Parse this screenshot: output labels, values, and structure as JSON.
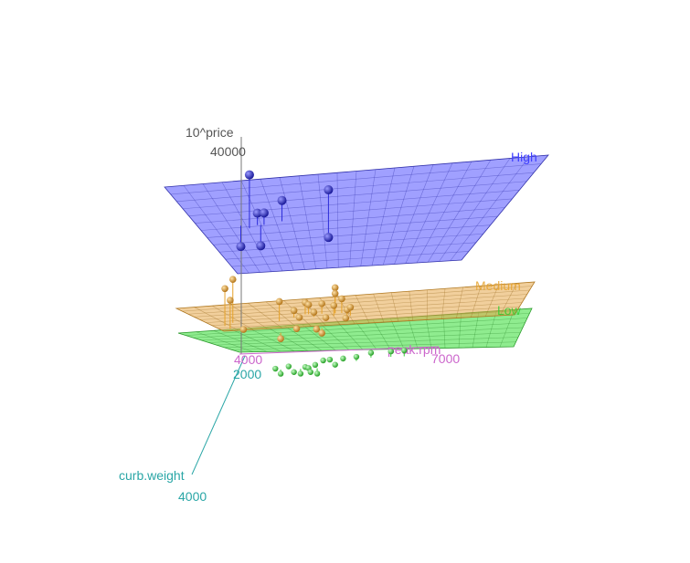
{
  "chart_data": {
    "type": "scatter",
    "dimensions": 3,
    "axes": {
      "z": {
        "label": "10^price",
        "ticks": [
          "40000"
        ],
        "color": "#555555"
      },
      "x": {
        "label": "peak.rpm",
        "ticks": [
          "4000",
          "7000"
        ],
        "color": "#cc66cc"
      },
      "y": {
        "label": "curb.weight",
        "ticks": [
          "2000",
          "4000"
        ],
        "color": "#2aa6a6"
      }
    },
    "planes": [
      {
        "name": "High",
        "color": "#4040ff"
      },
      {
        "name": "Medium",
        "color": "#e6a22a"
      },
      {
        "name": "Low",
        "color": "#33cc33"
      }
    ],
    "series": [
      {
        "name": "High",
        "color": "#2b2bd9",
        "points": [
          {
            "rpm": 4350,
            "weight": 2500,
            "price": 40000
          },
          {
            "rpm": 4450,
            "weight": 2450,
            "price": 33000
          },
          {
            "rpm": 4550,
            "weight": 2450,
            "price": 33000
          },
          {
            "rpm": 4800,
            "weight": 2400,
            "price": 34500
          },
          {
            "rpm": 5500,
            "weight": 2400,
            "price": 36000
          },
          {
            "rpm": 4200,
            "weight": 2450,
            "price": 27500
          },
          {
            "rpm": 4500,
            "weight": 2450,
            "price": 27500
          },
          {
            "rpm": 5500,
            "weight": 2400,
            "price": 28000
          }
        ]
      },
      {
        "name": "Medium",
        "color": "#e6a22a",
        "points": [
          {
            "rpm": 4100,
            "weight": 2500,
            "price": 22500
          },
          {
            "rpm": 4000,
            "weight": 2550,
            "price": 21500
          },
          {
            "rpm": 4100,
            "weight": 2600,
            "price": 20000
          },
          {
            "rpm": 4800,
            "weight": 2500,
            "price": 18500
          },
          {
            "rpm": 5600,
            "weight": 2400,
            "price": 19500
          },
          {
            "rpm": 5600,
            "weight": 2400,
            "price": 18500
          },
          {
            "rpm": 5150,
            "weight": 2400,
            "price": 17200
          },
          {
            "rpm": 5200,
            "weight": 2400,
            "price": 16800
          },
          {
            "rpm": 5400,
            "weight": 2400,
            "price": 16900
          },
          {
            "rpm": 5600,
            "weight": 2450,
            "price": 17000
          },
          {
            "rpm": 5700,
            "weight": 2400,
            "price": 17600
          },
          {
            "rpm": 5000,
            "weight": 2450,
            "price": 16400
          },
          {
            "rpm": 5300,
            "weight": 2450,
            "price": 16000
          },
          {
            "rpm": 5800,
            "weight": 2450,
            "price": 16200
          },
          {
            "rpm": 5850,
            "weight": 2450,
            "price": 16600
          },
          {
            "rpm": 5100,
            "weight": 2500,
            "price": 15700
          },
          {
            "rpm": 5500,
            "weight": 2500,
            "price": 15500
          },
          {
            "rpm": 5800,
            "weight": 2500,
            "price": 15300
          },
          {
            "rpm": 4300,
            "weight": 2600,
            "price": 15000
          },
          {
            "rpm": 5100,
            "weight": 2600,
            "price": 14800
          },
          {
            "rpm": 5400,
            "weight": 2600,
            "price": 14600
          },
          {
            "rpm": 5500,
            "weight": 2650,
            "price": 14400
          },
          {
            "rpm": 4900,
            "weight": 2700,
            "price": 14200
          }
        ]
      },
      {
        "name": "Low",
        "color": "#33cc33",
        "points": [
          {
            "rpm": 5000,
            "weight": 2650,
            "price": 9000
          },
          {
            "rpm": 5100,
            "weight": 2700,
            "price": 8500
          },
          {
            "rpm": 5200,
            "weight": 2700,
            "price": 8200
          },
          {
            "rpm": 5250,
            "weight": 2650,
            "price": 8800
          },
          {
            "rpm": 5300,
            "weight": 2650,
            "price": 8600
          },
          {
            "rpm": 5350,
            "weight": 2700,
            "price": 8400
          },
          {
            "rpm": 5400,
            "weight": 2650,
            "price": 9100
          },
          {
            "rpm": 5500,
            "weight": 2600,
            "price": 9300
          },
          {
            "rpm": 5600,
            "weight": 2600,
            "price": 9400
          },
          {
            "rpm": 5800,
            "weight": 2600,
            "price": 9500
          },
          {
            "rpm": 6000,
            "weight": 2600,
            "price": 9700
          },
          {
            "rpm": 6200,
            "weight": 2550,
            "price": 9800
          },
          {
            "rpm": 6500,
            "weight": 2550,
            "price": 9900
          },
          {
            "rpm": 6700,
            "weight": 2550,
            "price": 10000
          },
          {
            "rpm": 4900,
            "weight": 2700,
            "price": 8300
          },
          {
            "rpm": 4800,
            "weight": 2650,
            "price": 8700
          },
          {
            "rpm": 5450,
            "weight": 2700,
            "price": 8100
          },
          {
            "rpm": 5700,
            "weight": 2650,
            "price": 9000
          }
        ]
      }
    ]
  }
}
